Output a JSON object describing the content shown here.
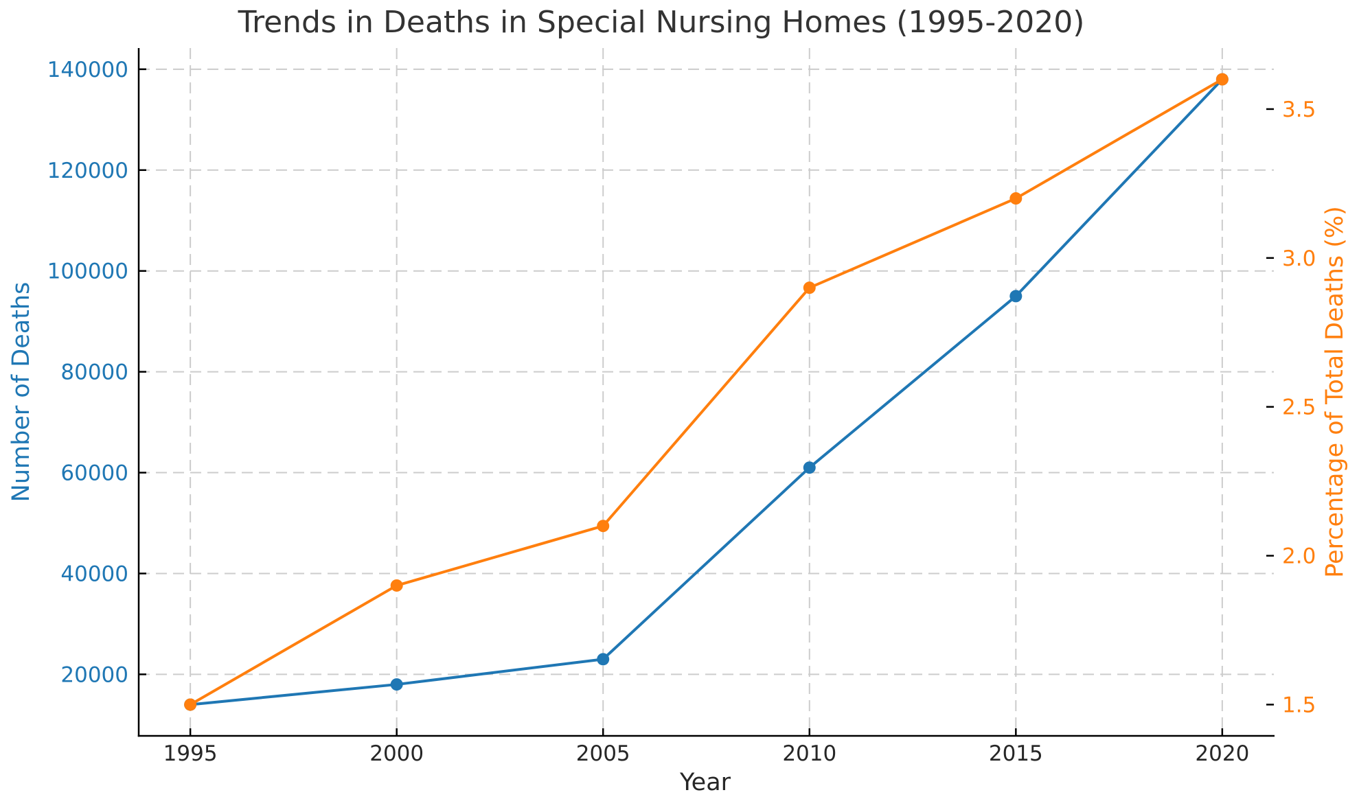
{
  "page": {
    "background": "#ffffff"
  },
  "style": {
    "title_color": "#333333",
    "x_tick_color": "#262626",
    "spine_color": "#000000",
    "tick_mark_color": "#000000",
    "grid_color": "#cccccc",
    "background": "#ffffff"
  },
  "chart_data": {
    "type": "line",
    "title": "Trends in Deaths in Special Nursing Homes (1995-2020)",
    "xlabel": "Year",
    "x": [
      1995,
      2000,
      2005,
      2010,
      2015,
      2020
    ],
    "x_tick_labels": [
      "1995",
      "2000",
      "2005",
      "2010",
      "2015",
      "2020"
    ],
    "xlim": [
      1993.75,
      2021.25
    ],
    "grid": {
      "show": true,
      "line_style": "dashed",
      "drawn_from": "left axis ticks and x ticks"
    },
    "legend": {
      "show": false
    },
    "axes": {
      "left": {
        "label": "Number of Deaths",
        "color": "#1f77b4",
        "ticks": [
          20000,
          40000,
          60000,
          80000,
          100000,
          120000,
          140000
        ],
        "tick_labels": [
          "20000",
          "40000",
          "60000",
          "80000",
          "100000",
          "120000",
          "140000"
        ],
        "lim": [
          7800,
          144200
        ]
      },
      "right": {
        "label": "Percentage of Total Deaths (%)",
        "color": "#ff7f0e",
        "ticks": [
          1.5,
          2.0,
          2.5,
          3.0,
          3.5
        ],
        "tick_labels": [
          "1.5",
          "2.0",
          "2.5",
          "3.0",
          "3.5"
        ],
        "lim": [
          1.395,
          3.705
        ]
      }
    },
    "series": [
      {
        "name": "Number of Deaths",
        "axis": "left",
        "color": "#1f77b4",
        "marker": "circle",
        "values": [
          14000,
          18000,
          23000,
          61000,
          95000,
          138000
        ]
      },
      {
        "name": "Percentage of Total Deaths (%)",
        "axis": "right",
        "color": "#ff7f0e",
        "marker": "circle",
        "values": [
          1.5,
          1.9,
          2.1,
          2.9,
          3.2,
          3.6
        ]
      }
    ]
  }
}
